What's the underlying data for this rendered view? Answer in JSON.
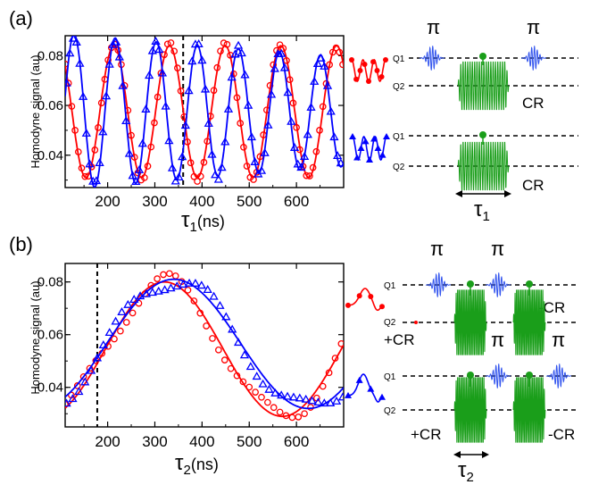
{
  "chart_data": [
    {
      "type": "line",
      "panel_label": "(a)",
      "ylabel": "Homodyne signal (au)",
      "xlabel": "τ1 (ns)",
      "xlabel_main": "τ",
      "xlabel_sub": "1",
      "xlabel_unit": "(ns)",
      "xlim": [
        110,
        700
      ],
      "ylim": [
        0.027,
        0.088
      ],
      "xticks": [
        200,
        300,
        400,
        500,
        600
      ],
      "yticks": [
        0.04,
        0.06,
        0.08
      ],
      "ytick_labels": [
        "0.04",
        "0.06",
        "0.08"
      ],
      "vline_x": 360,
      "series": [
        {
          "color": "#ff0000",
          "marker": "circle",
          "model": {
            "c": 0.0575,
            "a": 0.0265,
            "period": 118,
            "phase": 95,
            "decay": 0
          }
        },
        {
          "color": "#0000ff",
          "marker": "triangle",
          "model": {
            "c": 0.0575,
            "a": 0.0315,
            "period": 87,
            "phase": 42,
            "decay": 0.0006
          }
        }
      ]
    },
    {
      "type": "line",
      "panel_label": "(b)",
      "ylabel": "Homodyne signal (au)",
      "xlabel": "τ2 (ns)",
      "xlabel_main": "τ",
      "xlabel_sub": "2",
      "xlabel_unit": "(ns)",
      "xlim": [
        110,
        700
      ],
      "ylim": [
        0.025,
        0.087
      ],
      "xticks": [
        200,
        300,
        400,
        500,
        600
      ],
      "yticks": [
        0.04,
        0.06,
        0.08
      ],
      "ytick_labels": [
        "0.04",
        "0.06",
        "0.08"
      ],
      "vline_x": 178,
      "series": [
        {
          "color": "#ff0000",
          "marker": "circle",
          "model": {
            "c": 0.0545,
            "a": 0.0255,
            "period": 500,
            "phase": 320
          }
        },
        {
          "color": "#0000ff",
          "marker": "triangle",
          "model": {
            "c": 0.0565,
            "a": 0.0245,
            "period": 570,
            "phase": 340
          }
        }
      ]
    }
  ],
  "pulse_diagrams": {
    "pi": "π",
    "q1": "Q1",
    "q2": "Q2",
    "cr": "CR",
    "plus_cr": "+CR",
    "minus_cr": "-CR",
    "tau1_main": "τ",
    "tau1_sub": "1",
    "tau2_main": "τ",
    "tau2_sub": "2"
  },
  "colors": {
    "red": "#ff0000",
    "blue": "#0000ff",
    "green": "#1a9e1a",
    "blue_pulse": "#3355ee"
  }
}
